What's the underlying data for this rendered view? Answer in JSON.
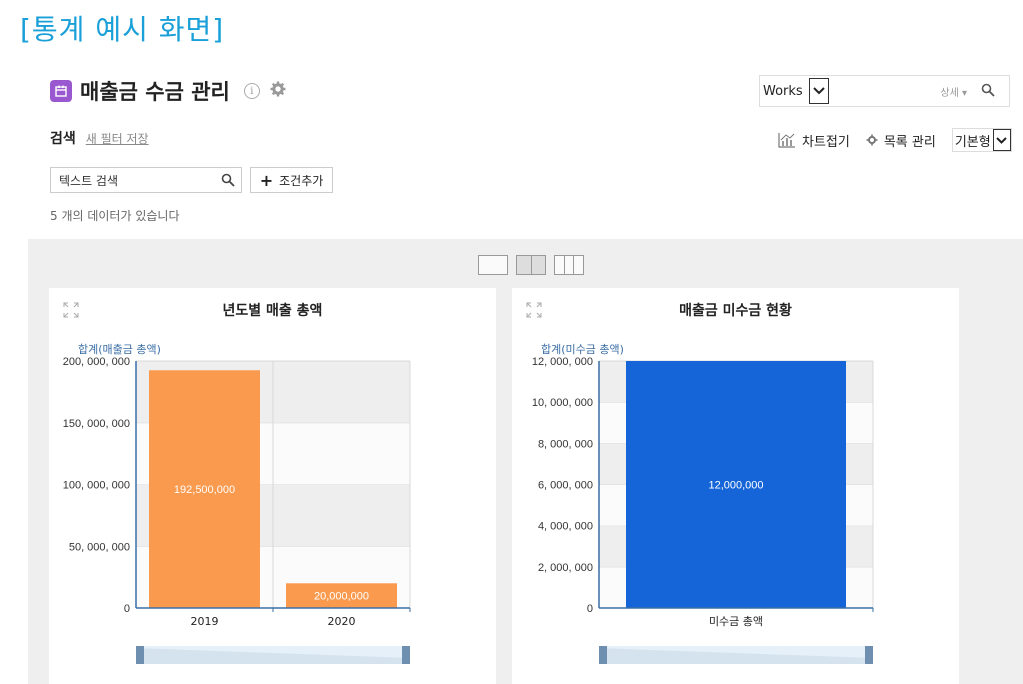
{
  "caption": "[통계 예시 화면]",
  "header": {
    "title": "매출금 수금 관리",
    "app_icon": "calendar-icon",
    "info_icon": "i",
    "works_select": "Works",
    "detail_label": "상세 ▾"
  },
  "search": {
    "label": "검색",
    "save_filter": "새 필터 저장",
    "text_placeholder": "텍스트 검색",
    "add_condition": "조건추가",
    "add_symbol": "+"
  },
  "toolbar": {
    "chart_collapse": "차트접기",
    "list_manage": "목록 관리",
    "view_mode": "기본형"
  },
  "count_text": "5 개의 데이터가 있습니다",
  "colors": {
    "caption": "#1aa0d8",
    "app_icon": "#9a58d0",
    "bar_orange": "#fa9a4e",
    "bar_blue": "#1565d8",
    "axis": "#3a6ea5"
  },
  "chart_data": [
    {
      "type": "bar",
      "title": "년도별 매출 총액",
      "ylabel": "합계(매출금 총액)",
      "categories": [
        "2019",
        "2020"
      ],
      "values": [
        192500000,
        20000000
      ],
      "value_labels": [
        "192,500,000",
        "20,000,000"
      ],
      "ylim": [
        0,
        200000000
      ],
      "yticks": [
        0,
        50000000,
        100000000,
        150000000,
        200000000
      ],
      "ytick_labels": [
        "0",
        "50, 000, 000",
        "100, 000, 000",
        "150, 000, 000",
        "200, 000, 000"
      ],
      "color": "#fa9a4e",
      "grid": true
    },
    {
      "type": "bar",
      "title": "매출금 미수금 현황",
      "ylabel": "합계(미수금 총액)",
      "categories": [
        "미수금 총액"
      ],
      "values": [
        12000000
      ],
      "value_labels": [
        "12,000,000"
      ],
      "ylim": [
        0,
        12000000
      ],
      "yticks": [
        0,
        2000000,
        4000000,
        6000000,
        8000000,
        10000000,
        12000000
      ],
      "ytick_labels": [
        "0",
        "2, 000, 000",
        "4, 000, 000",
        "6, 000, 000",
        "8, 000, 000",
        "10, 000, 000",
        "12, 000, 000"
      ],
      "color": "#1565d8",
      "grid": true
    }
  ]
}
